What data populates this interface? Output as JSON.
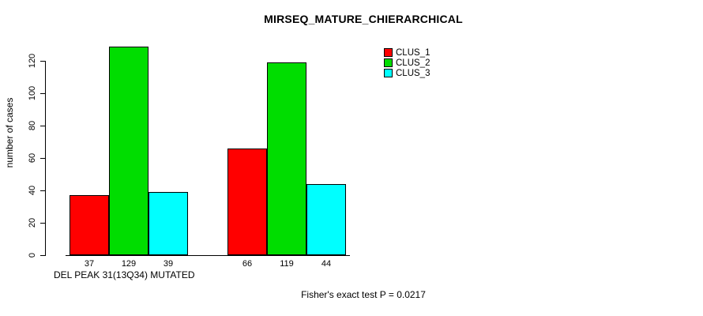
{
  "chart_data": {
    "type": "bar",
    "title": "MIRSEQ_MATURE_CHIERARCHICAL",
    "ylabel": "number of cases",
    "xlabel": "",
    "yticks": [
      0,
      20,
      40,
      60,
      80,
      100,
      120
    ],
    "ylim": [
      0,
      130
    ],
    "grid": false,
    "legend_position": "top-right",
    "categories": [
      "DEL PEAK 31(13Q34) MUTATED",
      ""
    ],
    "series": [
      {
        "name": "CLUS_1",
        "color": "#ff0000",
        "values": [
          37,
          66
        ]
      },
      {
        "name": "CLUS_2",
        "color": "#00dd00",
        "values": [
          129,
          119
        ]
      },
      {
        "name": "CLUS_3",
        "color": "#00ffff",
        "values": [
          39,
          44
        ]
      }
    ],
    "value_labels": [
      [
        37,
        129,
        39
      ],
      [
        66,
        119,
        44
      ]
    ],
    "annotation": "Fisher's exact test P = 0.0217"
  }
}
